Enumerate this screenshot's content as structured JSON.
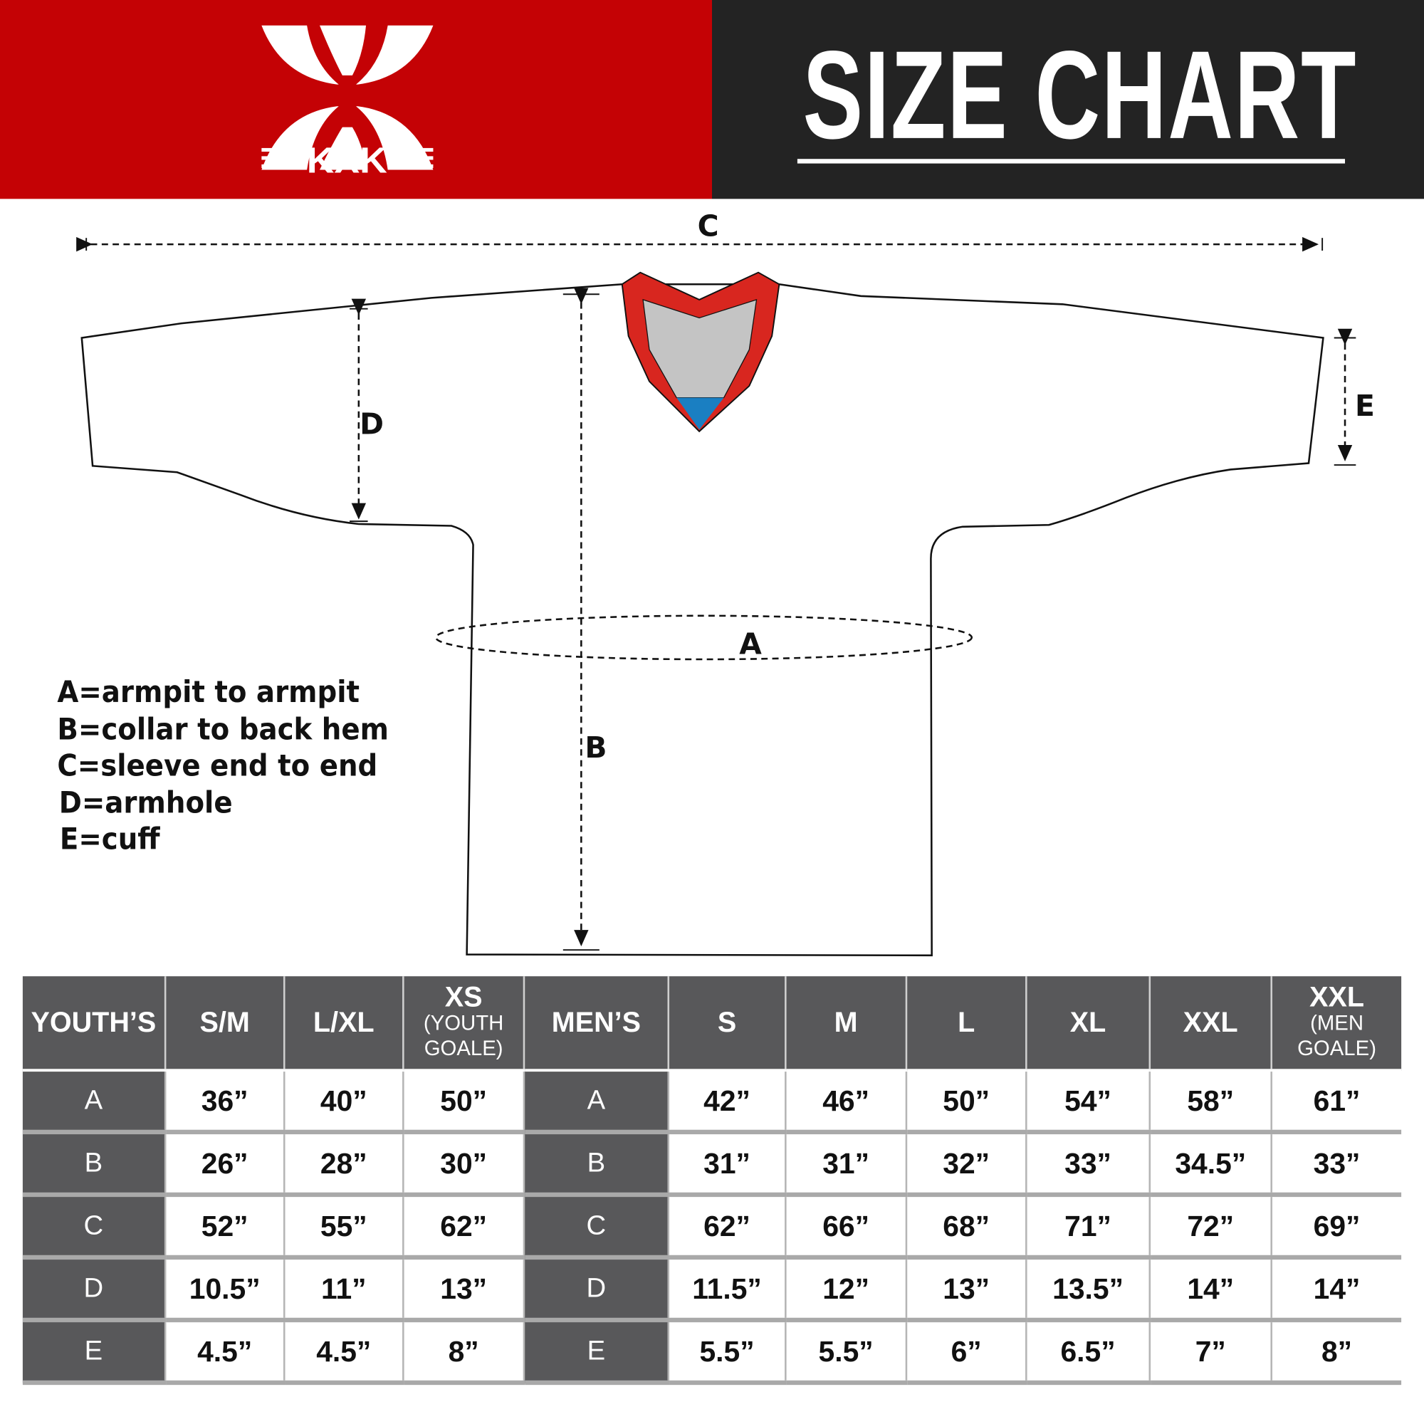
{
  "header": {
    "brand": "KXK",
    "title": "SIZE CHART",
    "colors": {
      "brand_red": "#c40205",
      "header_dark": "#232323",
      "table_gray": "#58585a",
      "collar_red": "#d8261f",
      "collar_gray": "#c4c4c4",
      "collar_blue": "#1a7fc2"
    }
  },
  "diagram": {
    "labels": {
      "a": "A",
      "b": "B",
      "c": "C",
      "d": "D",
      "e": "E"
    }
  },
  "legend": [
    "A=armpit to armpit",
    "B=collar to back hem",
    "C=sleeve end to end",
    "D=armhole",
    "E=cuff"
  ],
  "table": {
    "youth_header": "YOUTH’S",
    "youth_sizes": [
      {
        "label": "S/M",
        "sub": ""
      },
      {
        "label": "L/XL",
        "sub": ""
      },
      {
        "label": "XS",
        "sub": "(YOUTH GOALE)"
      }
    ],
    "men_header": "MEN’S",
    "men_sizes": [
      {
        "label": "S",
        "sub": ""
      },
      {
        "label": "M",
        "sub": ""
      },
      {
        "label": "L",
        "sub": ""
      },
      {
        "label": "XL",
        "sub": ""
      },
      {
        "label": "XXL",
        "sub": ""
      },
      {
        "label": "XXL",
        "sub": "(MEN GOALE)"
      }
    ],
    "rows": [
      {
        "label": "A",
        "youth": [
          "36”",
          "40”",
          "50”"
        ],
        "men": [
          "42”",
          "46”",
          "50”",
          "54”",
          "58”",
          "61”"
        ]
      },
      {
        "label": "B",
        "youth": [
          "26”",
          "28”",
          "30”"
        ],
        "men": [
          "31”",
          "31”",
          "32”",
          "33”",
          "34.5”",
          "33”"
        ]
      },
      {
        "label": "C",
        "youth": [
          "52”",
          "55”",
          "62”"
        ],
        "men": [
          "62”",
          "66”",
          "68”",
          "71”",
          "72”",
          "69”"
        ]
      },
      {
        "label": "D",
        "youth": [
          "10.5”",
          "11”",
          "13”"
        ],
        "men": [
          "11.5”",
          "12”",
          "13”",
          "13.5”",
          "14”",
          "14”"
        ]
      },
      {
        "label": "E",
        "youth": [
          "4.5”",
          "4.5”",
          "8”"
        ],
        "men": [
          "5.5”",
          "5.5”",
          "6”",
          "6.5”",
          "7”",
          "8”"
        ]
      }
    ]
  }
}
